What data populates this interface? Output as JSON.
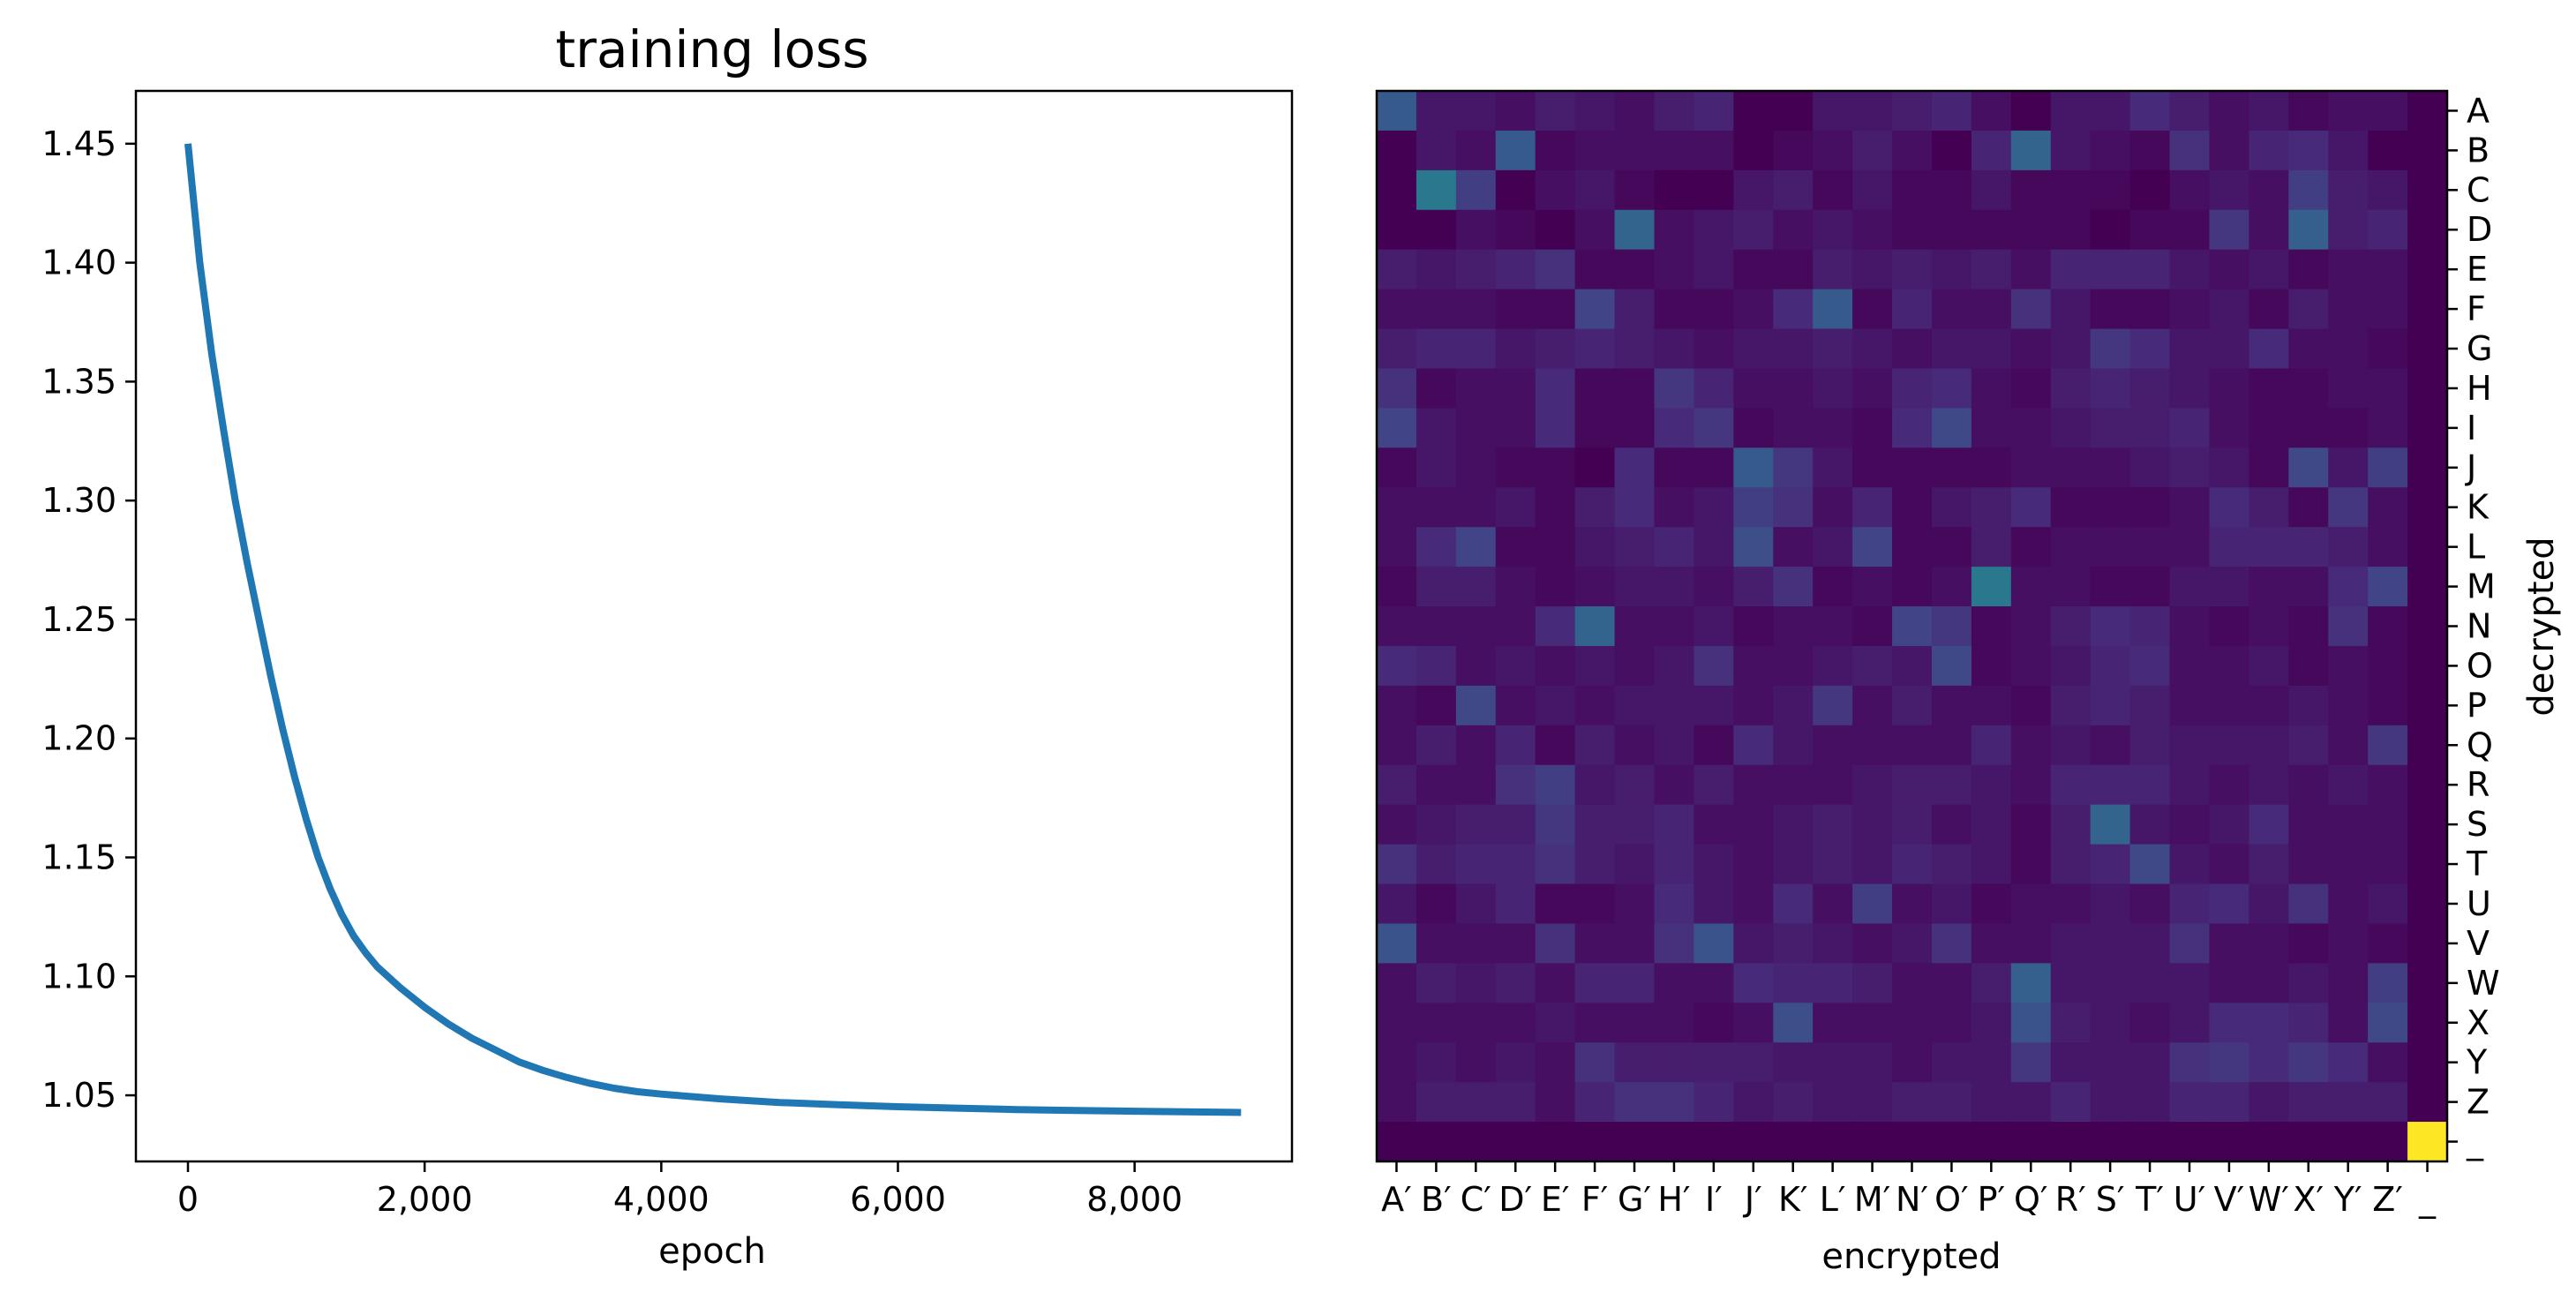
{
  "chart_data": [
    {
      "type": "line",
      "title": "training loss",
      "xlabel": "epoch",
      "ylabel": "",
      "xlim": [
        -440,
        9330
      ],
      "ylim": [
        1.0222,
        1.4722
      ],
      "xticks": [
        0,
        2000,
        4000,
        6000,
        8000
      ],
      "xtick_labels": [
        "0",
        "2,000",
        "4,000",
        "6,000",
        "8,000"
      ],
      "yticks": [
        1.05,
        1.1,
        1.15,
        1.2,
        1.25,
        1.3,
        1.35,
        1.4,
        1.45
      ],
      "ytick_labels": [
        "1.05",
        "1.10",
        "1.15",
        "1.20",
        "1.25",
        "1.30",
        "1.35",
        "1.40",
        "1.45"
      ],
      "grid": false,
      "line_color": "#1f77b4",
      "series": [
        {
          "x": [
            0,
            100,
            200,
            300,
            400,
            500,
            600,
            700,
            800,
            900,
            1000,
            1100,
            1200,
            1300,
            1400,
            1500,
            1600,
            1800,
            2000,
            2200,
            2400,
            2600,
            2800,
            3000,
            3200,
            3400,
            3600,
            3800,
            4000,
            4500,
            5000,
            5500,
            6000,
            6500,
            7000,
            7500,
            8000,
            8500,
            8900
          ],
          "y": [
            1.45,
            1.4,
            1.362,
            1.33,
            1.3,
            1.274,
            1.25,
            1.226,
            1.204,
            1.184,
            1.166,
            1.15,
            1.137,
            1.126,
            1.117,
            1.11,
            1.104,
            1.095,
            1.087,
            1.08,
            1.074,
            1.069,
            1.064,
            1.0605,
            1.0575,
            1.055,
            1.053,
            1.0515,
            1.0505,
            1.0485,
            1.047,
            1.046,
            1.0452,
            1.0446,
            1.044,
            1.0436,
            1.0433,
            1.043,
            1.0428
          ]
        }
      ]
    },
    {
      "type": "heatmap",
      "title": "",
      "xlabel": "encrypted",
      "ylabel": "decrypted",
      "x_labels": [
        "A′",
        "B′",
        "C′",
        "D′",
        "E′",
        "F′",
        "G′",
        "H′",
        "I′",
        "J′",
        "K′",
        "L′",
        "M′",
        "N′",
        "O′",
        "P′",
        "Q′",
        "R′",
        "S′",
        "T′",
        "U′",
        "V′",
        "W′",
        "X′",
        "Y′",
        "Z′",
        "_"
      ],
      "y_labels": [
        "A",
        "B",
        "C",
        "D",
        "E",
        "F",
        "G",
        "H",
        "I",
        "J",
        "K",
        "L",
        "M",
        "N",
        "O",
        "P",
        "Q",
        "R",
        "S",
        "T",
        "U",
        "V",
        "W",
        "X",
        "Y",
        "Z",
        "_"
      ],
      "colormap": "viridis",
      "vmin": 0,
      "vmax": 1,
      "values": [
        [
          0.28,
          0.06,
          0.06,
          0.04,
          0.08,
          0.06,
          0.04,
          0.08,
          0.1,
          0.0,
          0.0,
          0.06,
          0.06,
          0.08,
          0.1,
          0.04,
          0.0,
          0.06,
          0.06,
          0.12,
          0.08,
          0.04,
          0.06,
          0.02,
          0.04,
          0.04,
          0.0
        ],
        [
          0.0,
          0.06,
          0.04,
          0.28,
          0.02,
          0.04,
          0.04,
          0.04,
          0.04,
          0.0,
          0.02,
          0.04,
          0.08,
          0.04,
          0.0,
          0.1,
          0.32,
          0.06,
          0.04,
          0.02,
          0.14,
          0.04,
          0.1,
          0.12,
          0.06,
          0.0,
          0.0
        ],
        [
          0.0,
          0.4,
          0.18,
          0.0,
          0.04,
          0.06,
          0.02,
          0.0,
          0.0,
          0.06,
          0.08,
          0.02,
          0.06,
          0.02,
          0.02,
          0.06,
          0.02,
          0.02,
          0.02,
          0.0,
          0.04,
          0.06,
          0.04,
          0.18,
          0.08,
          0.06,
          0.0
        ],
        [
          0.0,
          0.0,
          0.04,
          0.02,
          0.0,
          0.04,
          0.32,
          0.04,
          0.06,
          0.08,
          0.04,
          0.06,
          0.04,
          0.02,
          0.02,
          0.02,
          0.02,
          0.02,
          0.0,
          0.02,
          0.02,
          0.16,
          0.04,
          0.3,
          0.08,
          0.1,
          0.0
        ],
        [
          0.08,
          0.06,
          0.08,
          0.1,
          0.14,
          0.02,
          0.02,
          0.04,
          0.06,
          0.02,
          0.02,
          0.08,
          0.06,
          0.08,
          0.06,
          0.08,
          0.04,
          0.1,
          0.1,
          0.1,
          0.06,
          0.04,
          0.06,
          0.02,
          0.04,
          0.04,
          0.0
        ],
        [
          0.04,
          0.04,
          0.04,
          0.02,
          0.02,
          0.2,
          0.08,
          0.02,
          0.02,
          0.04,
          0.12,
          0.28,
          0.02,
          0.1,
          0.04,
          0.04,
          0.14,
          0.06,
          0.02,
          0.02,
          0.04,
          0.06,
          0.02,
          0.08,
          0.04,
          0.04,
          0.0
        ],
        [
          0.08,
          0.1,
          0.1,
          0.06,
          0.08,
          0.1,
          0.08,
          0.06,
          0.04,
          0.06,
          0.06,
          0.08,
          0.06,
          0.04,
          0.06,
          0.06,
          0.04,
          0.06,
          0.16,
          0.12,
          0.06,
          0.06,
          0.12,
          0.04,
          0.04,
          0.02,
          0.0
        ],
        [
          0.14,
          0.02,
          0.04,
          0.04,
          0.12,
          0.02,
          0.02,
          0.16,
          0.1,
          0.04,
          0.04,
          0.06,
          0.04,
          0.1,
          0.12,
          0.04,
          0.02,
          0.08,
          0.1,
          0.08,
          0.06,
          0.04,
          0.02,
          0.02,
          0.04,
          0.04,
          0.0
        ],
        [
          0.2,
          0.06,
          0.04,
          0.04,
          0.12,
          0.02,
          0.02,
          0.12,
          0.16,
          0.02,
          0.04,
          0.04,
          0.02,
          0.12,
          0.22,
          0.04,
          0.04,
          0.06,
          0.08,
          0.08,
          0.1,
          0.04,
          0.02,
          0.02,
          0.02,
          0.04,
          0.0
        ],
        [
          0.02,
          0.06,
          0.04,
          0.02,
          0.02,
          0.0,
          0.12,
          0.02,
          0.02,
          0.28,
          0.16,
          0.06,
          0.02,
          0.02,
          0.02,
          0.02,
          0.04,
          0.04,
          0.04,
          0.06,
          0.08,
          0.06,
          0.02,
          0.22,
          0.06,
          0.18,
          0.0
        ],
        [
          0.04,
          0.04,
          0.04,
          0.06,
          0.02,
          0.08,
          0.12,
          0.04,
          0.06,
          0.18,
          0.14,
          0.04,
          0.1,
          0.02,
          0.06,
          0.08,
          0.12,
          0.02,
          0.02,
          0.02,
          0.04,
          0.12,
          0.08,
          0.02,
          0.16,
          0.04,
          0.0
        ],
        [
          0.04,
          0.12,
          0.2,
          0.02,
          0.02,
          0.06,
          0.08,
          0.1,
          0.06,
          0.24,
          0.04,
          0.06,
          0.2,
          0.02,
          0.02,
          0.08,
          0.02,
          0.04,
          0.04,
          0.04,
          0.04,
          0.1,
          0.1,
          0.1,
          0.08,
          0.04,
          0.0
        ],
        [
          0.02,
          0.08,
          0.08,
          0.04,
          0.02,
          0.04,
          0.06,
          0.06,
          0.04,
          0.08,
          0.14,
          0.02,
          0.04,
          0.02,
          0.04,
          0.4,
          0.04,
          0.04,
          0.02,
          0.02,
          0.06,
          0.06,
          0.04,
          0.04,
          0.12,
          0.2,
          0.0
        ],
        [
          0.04,
          0.04,
          0.04,
          0.04,
          0.12,
          0.32,
          0.04,
          0.04,
          0.06,
          0.02,
          0.04,
          0.04,
          0.02,
          0.2,
          0.16,
          0.02,
          0.04,
          0.08,
          0.12,
          0.1,
          0.04,
          0.02,
          0.04,
          0.02,
          0.14,
          0.02,
          0.0
        ],
        [
          0.12,
          0.1,
          0.04,
          0.06,
          0.04,
          0.06,
          0.04,
          0.06,
          0.14,
          0.04,
          0.04,
          0.06,
          0.08,
          0.06,
          0.22,
          0.02,
          0.04,
          0.06,
          0.1,
          0.12,
          0.04,
          0.04,
          0.06,
          0.02,
          0.04,
          0.02,
          0.0
        ],
        [
          0.04,
          0.02,
          0.22,
          0.04,
          0.06,
          0.04,
          0.06,
          0.06,
          0.06,
          0.04,
          0.06,
          0.16,
          0.04,
          0.08,
          0.04,
          0.04,
          0.02,
          0.08,
          0.1,
          0.08,
          0.04,
          0.04,
          0.04,
          0.06,
          0.04,
          0.02,
          0.0
        ],
        [
          0.04,
          0.08,
          0.04,
          0.1,
          0.02,
          0.08,
          0.04,
          0.06,
          0.02,
          0.12,
          0.06,
          0.04,
          0.04,
          0.04,
          0.04,
          0.1,
          0.04,
          0.06,
          0.04,
          0.08,
          0.06,
          0.06,
          0.06,
          0.08,
          0.04,
          0.16,
          0.0
        ],
        [
          0.08,
          0.04,
          0.04,
          0.14,
          0.18,
          0.06,
          0.08,
          0.04,
          0.08,
          0.04,
          0.04,
          0.04,
          0.06,
          0.08,
          0.08,
          0.06,
          0.04,
          0.1,
          0.1,
          0.1,
          0.06,
          0.04,
          0.06,
          0.04,
          0.06,
          0.04,
          0.0
        ],
        [
          0.04,
          0.06,
          0.08,
          0.08,
          0.16,
          0.08,
          0.08,
          0.1,
          0.04,
          0.04,
          0.06,
          0.08,
          0.06,
          0.08,
          0.04,
          0.06,
          0.02,
          0.08,
          0.32,
          0.06,
          0.04,
          0.06,
          0.12,
          0.04,
          0.04,
          0.04,
          0.0
        ],
        [
          0.14,
          0.08,
          0.1,
          0.1,
          0.14,
          0.08,
          0.06,
          0.1,
          0.06,
          0.04,
          0.06,
          0.08,
          0.06,
          0.1,
          0.08,
          0.06,
          0.02,
          0.08,
          0.1,
          0.22,
          0.06,
          0.04,
          0.08,
          0.04,
          0.04,
          0.04,
          0.0
        ],
        [
          0.06,
          0.02,
          0.06,
          0.1,
          0.02,
          0.02,
          0.04,
          0.12,
          0.06,
          0.04,
          0.12,
          0.04,
          0.18,
          0.04,
          0.06,
          0.02,
          0.04,
          0.04,
          0.06,
          0.04,
          0.1,
          0.12,
          0.06,
          0.14,
          0.04,
          0.06,
          0.0
        ],
        [
          0.26,
          0.04,
          0.04,
          0.04,
          0.14,
          0.04,
          0.04,
          0.14,
          0.26,
          0.06,
          0.08,
          0.06,
          0.04,
          0.06,
          0.14,
          0.04,
          0.04,
          0.06,
          0.06,
          0.06,
          0.14,
          0.04,
          0.04,
          0.02,
          0.04,
          0.02,
          0.0
        ],
        [
          0.04,
          0.08,
          0.06,
          0.08,
          0.04,
          0.1,
          0.1,
          0.04,
          0.04,
          0.12,
          0.1,
          0.1,
          0.08,
          0.04,
          0.04,
          0.08,
          0.3,
          0.06,
          0.06,
          0.06,
          0.06,
          0.04,
          0.04,
          0.06,
          0.04,
          0.18,
          0.0
        ],
        [
          0.04,
          0.04,
          0.04,
          0.04,
          0.06,
          0.04,
          0.04,
          0.04,
          0.02,
          0.04,
          0.24,
          0.04,
          0.04,
          0.04,
          0.04,
          0.06,
          0.26,
          0.08,
          0.06,
          0.04,
          0.06,
          0.12,
          0.12,
          0.1,
          0.04,
          0.22,
          0.0
        ],
        [
          0.04,
          0.06,
          0.04,
          0.06,
          0.04,
          0.14,
          0.08,
          0.08,
          0.08,
          0.08,
          0.06,
          0.06,
          0.06,
          0.04,
          0.06,
          0.06,
          0.16,
          0.06,
          0.06,
          0.06,
          0.14,
          0.16,
          0.12,
          0.16,
          0.12,
          0.04,
          0.0
        ],
        [
          0.04,
          0.08,
          0.08,
          0.08,
          0.04,
          0.1,
          0.14,
          0.14,
          0.1,
          0.06,
          0.08,
          0.06,
          0.06,
          0.08,
          0.08,
          0.06,
          0.06,
          0.1,
          0.06,
          0.06,
          0.1,
          0.1,
          0.06,
          0.08,
          0.08,
          0.08,
          0.0
        ],
        [
          0.0,
          0.0,
          0.0,
          0.0,
          0.0,
          0.0,
          0.0,
          0.0,
          0.0,
          0.0,
          0.0,
          0.0,
          0.0,
          0.0,
          0.0,
          0.0,
          0.0,
          0.0,
          0.0,
          0.0,
          0.0,
          0.0,
          0.0,
          0.0,
          0.0,
          0.0,
          1.0
        ]
      ]
    }
  ]
}
